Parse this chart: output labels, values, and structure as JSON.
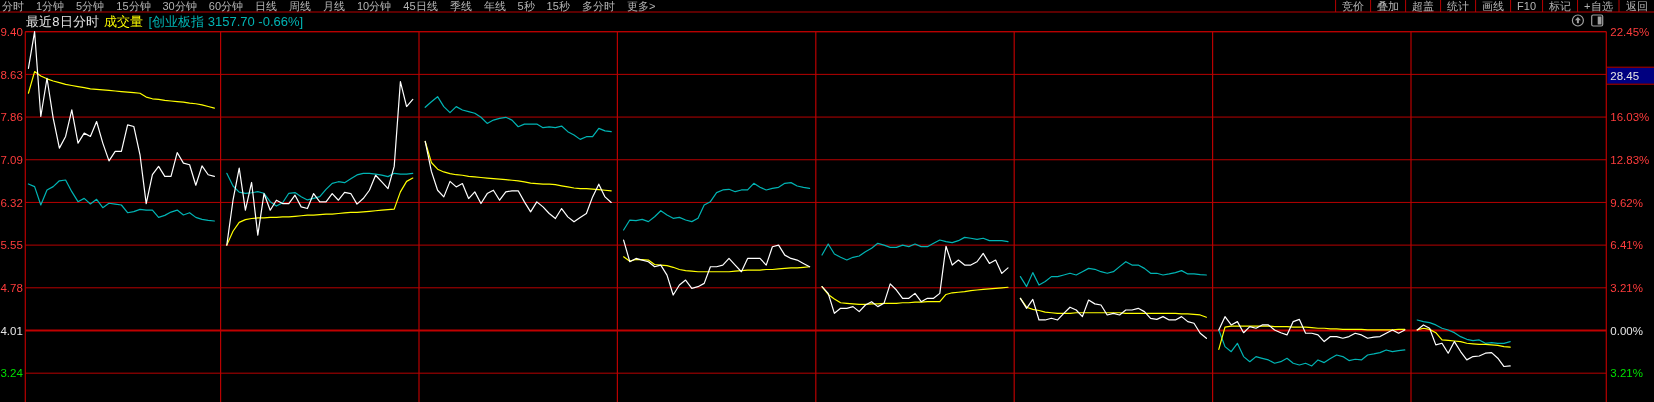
{
  "chart_data": {
    "type": "line",
    "title": "最近8日分时",
    "annotations": [
      "分时 1分钟 5分钟 15分钟 30分钟 60分钟 日线 周线 月线 10分钟 45日线 季线 年线 5秒 15秒 多分时 更多>",
      "竞价 叠加 超盖 统计 画线 F10 标记 +自选 返回",
      "28.45"
    ],
    "categories": [
      null,
      null,
      null,
      null,
      null,
      null,
      null,
      null,
      null,
      null,
      null,
      null,
      null,
      null,
      null,
      null,
      null,
      null,
      null,
      null,
      null,
      null,
      null,
      null,
      null,
      null,
      null,
      null,
      null,
      null,
      null,
      null,
      null,
      null,
      null,
      null,
      null,
      null,
      null,
      null,
      null,
      null,
      null,
      null,
      null,
      null,
      null,
      null,
      null,
      null,
      null,
      null,
      null,
      null,
      null,
      null,
      null,
      null,
      null,
      null,
      null,
      null,
      null,
      null,
      null,
      null,
      null,
      null,
      null,
      null,
      null,
      null,
      null,
      null,
      null,
      null,
      null,
      null,
      null,
      null,
      null,
      null,
      null,
      null,
      null,
      null,
      null,
      null,
      null,
      null,
      null,
      null,
      null,
      null,
      null,
      null,
      null,
      null,
      null,
      null,
      null,
      null,
      null,
      null,
      null,
      null,
      null,
      null,
      null,
      null,
      null,
      null,
      null,
      null,
      null,
      null,
      null,
      null,
      null,
      null,
      null,
      null,
      null,
      null,
      null,
      null,
      null,
      null,
      null,
      null,
      null,
      null,
      null,
      null,
      null,
      null,
      null,
      null,
      null,
      null,
      null,
      null,
      null,
      null,
      null,
      null,
      null,
      null,
      null,
      null,
      null,
      null,
      null,
      null,
      null,
      null,
      null,
      null,
      null,
      null,
      null,
      null,
      null,
      null,
      null,
      null,
      null,
      null,
      null,
      null,
      null,
      null,
      null,
      null,
      null,
      null,
      null,
      null,
      null,
      null,
      null,
      null,
      null,
      null,
      null,
      null,
      null,
      null,
      null,
      null,
      null,
      null,
      null,
      null,
      null,
      null,
      null,
      null,
      null,
      null,
      null,
      null,
      null,
      null,
      null,
      null,
      null,
      null,
      null,
      null,
      null,
      null,
      null,
      null,
      null,
      null,
      null,
      null,
      null,
      null,
      null,
      null,
      null,
      null,
      null,
      null,
      null,
      null,
      null,
      null,
      null,
      null,
      null,
      null,
      null,
      null,
      null,
      null,
      null,
      null,
      null,
      null,
      null,
      null,
      null,
      null,
      null,
      null,
      null,
      null,
      null,
      null,
      null,
      null,
      null
    ],
    "ylim": [
      2.72,
      9.4
    ],
    "yticks": [
      {
        "value": 9.4,
        "label": "9.40"
      },
      8.63,
      7.86,
      7.09,
      6.32,
      5.55,
      4.78,
      4.01,
      3.24
    ],
    "y2lim": [
      -5.37,
      22.45
    ],
    "y2ticks": [
      {
        "value": 22.45,
        "label": "22.45%"
      },
      {
        "value": 16.03,
        "label": "16.03%"
      },
      {
        "value": 12.83,
        "label": "12.83%"
      },
      {
        "value": 9.62,
        "label": "9.62%"
      },
      {
        "value": 6.41,
        "label": "6.41%"
      },
      {
        "value": 3.21,
        "label": "3.21%"
      },
      {
        "value": 0,
        "label": "0.00%"
      },
      {
        "value": -3.21,
        "label": "3.21%"
      }
    ],
    "grid": true,
    "ref_lines": [
      {
        "axis": "y",
        "value": 4.01,
        "color": "#c00000"
      }
    ],
    "series": [
      {
        "color": "#ffffff",
        "values": [
          8.74,
          9.4,
          7.87,
          8.56,
          7.84,
          7.3,
          7.51,
          7.99,
          7.39,
          7.57,
          7.51,
          7.78,
          7.39,
          7.07,
          7.24,
          7.24,
          7.72,
          7.69,
          7.18,
          6.3,
          6.82,
          6.97,
          6.79,
          6.79,
          7.22,
          7.03,
          7.0,
          6.63,
          6.98,
          6.82,
          6.79,
          null,
          5.55,
          6.36,
          6.94,
          6.18,
          6.68,
          5.73,
          6.48,
          6.18,
          6.36,
          6.3,
          6.3,
          6.45,
          6.24,
          6.21,
          6.48,
          6.33,
          6.33,
          6.48,
          6.36,
          6.5,
          6.48,
          6.29,
          6.39,
          6.54,
          6.81,
          6.69,
          6.57,
          6.97,
          8.5,
          8.05,
          8.18,
          null,
          7.42,
          6.88,
          6.54,
          6.42,
          6.7,
          6.6,
          6.66,
          6.39,
          6.51,
          6.3,
          6.48,
          6.54,
          6.36,
          6.51,
          6.53,
          6.53,
          6.33,
          6.15,
          6.33,
          6.24,
          6.12,
          6.03,
          6.21,
          6.06,
          5.97,
          6.05,
          6.12,
          6.42,
          6.65,
          6.42,
          6.32,
          null,
          5.64,
          5.25,
          5.31,
          5.28,
          5.25,
          5.16,
          5.19,
          5.01,
          4.65,
          4.83,
          4.92,
          4.77,
          4.8,
          4.86,
          5.16,
          5.16,
          5.19,
          5.31,
          5.19,
          5.07,
          5.31,
          5.31,
          5.31,
          5.19,
          5.52,
          5.55,
          5.37,
          5.31,
          5.28,
          5.22,
          5.16,
          null,
          4.8,
          4.68,
          4.32,
          4.41,
          4.41,
          4.44,
          4.35,
          4.47,
          4.53,
          4.44,
          4.5,
          4.85,
          4.74,
          4.59,
          4.59,
          4.68,
          4.53,
          4.59,
          4.59,
          4.68,
          5.53,
          5.19,
          5.28,
          5.19,
          5.19,
          5.25,
          5.4,
          5.22,
          5.28,
          5.04,
          5.14,
          null,
          4.59,
          4.41,
          4.57,
          4.2,
          4.2,
          4.23,
          4.2,
          4.32,
          4.43,
          4.38,
          4.26,
          4.56,
          4.49,
          4.47,
          4.29,
          4.32,
          4.29,
          4.38,
          4.38,
          4.41,
          4.35,
          4.23,
          4.21,
          4.26,
          4.2,
          4.2,
          4.26,
          4.17,
          4.14,
          3.96,
          3.87,
          null,
          4.02,
          4.26,
          4.11,
          4.17,
          3.97,
          4.08,
          4.05,
          4.11,
          4.11,
          4.02,
          3.97,
          3.93,
          4.17,
          4.21,
          3.96,
          3.96,
          3.93,
          3.81,
          3.9,
          3.9,
          3.87,
          3.9,
          3.96,
          3.93,
          3.87,
          3.89,
          3.9,
          3.96,
          4.02,
          3.96,
          4.02,
          null,
          4.02,
          4.11,
          4.05,
          3.75,
          3.78,
          3.6,
          3.81,
          3.63,
          3.48,
          3.54,
          3.55,
          3.6,
          3.61,
          3.51,
          3.36,
          3.37,
          null,
          null,
          null,
          null,
          null,
          null,
          null,
          null,
          null,
          null,
          null,
          null,
          null,
          null,
          null
        ]
      },
      {
        "name": "成交量",
        "color": "#ffff00",
        "values": [
          8.29,
          8.68,
          8.6,
          8.55,
          8.51,
          8.48,
          8.45,
          8.43,
          8.41,
          8.39,
          8.37,
          8.36,
          8.35,
          8.34,
          8.33,
          8.32,
          8.31,
          8.3,
          8.29,
          8.22,
          8.19,
          8.18,
          8.16,
          8.15,
          8.14,
          8.13,
          8.11,
          8.1,
          8.08,
          8.05,
          8.02,
          null,
          5.55,
          5.8,
          5.96,
          6.01,
          6.03,
          6.04,
          6.04,
          6.05,
          6.05,
          6.06,
          6.06,
          6.07,
          6.08,
          6.09,
          6.09,
          6.1,
          6.11,
          6.11,
          6.12,
          6.13,
          6.14,
          6.14,
          6.15,
          6.16,
          6.17,
          6.18,
          6.19,
          6.2,
          6.51,
          6.7,
          6.76,
          null,
          7.42,
          7.04,
          6.92,
          6.87,
          6.84,
          6.82,
          6.81,
          6.79,
          6.78,
          6.77,
          6.76,
          6.75,
          6.74,
          6.73,
          6.72,
          6.71,
          6.69,
          6.67,
          6.66,
          6.65,
          6.65,
          6.64,
          6.62,
          6.6,
          6.58,
          6.57,
          6.57,
          6.56,
          6.55,
          6.54,
          6.53,
          null,
          5.34,
          5.26,
          5.29,
          5.29,
          5.28,
          5.2,
          5.19,
          5.18,
          5.15,
          5.11,
          5.09,
          5.08,
          5.07,
          5.07,
          5.07,
          5.07,
          5.07,
          5.07,
          5.08,
          5.09,
          5.1,
          5.1,
          5.1,
          5.11,
          5.11,
          5.12,
          5.13,
          5.14,
          5.14,
          5.15,
          5.16,
          null,
          4.8,
          4.66,
          4.58,
          4.51,
          4.5,
          4.49,
          4.48,
          4.48,
          4.49,
          4.49,
          4.5,
          4.5,
          4.5,
          4.51,
          4.51,
          4.52,
          4.52,
          4.53,
          4.53,
          4.53,
          4.66,
          4.69,
          4.7,
          4.71,
          4.73,
          4.74,
          4.75,
          4.76,
          4.77,
          4.78,
          4.79,
          null,
          4.59,
          4.43,
          4.39,
          4.37,
          4.34,
          4.33,
          4.32,
          4.32,
          4.32,
          4.33,
          4.33,
          4.33,
          4.33,
          4.33,
          4.33,
          4.33,
          4.33,
          4.32,
          4.32,
          4.32,
          4.32,
          4.32,
          4.32,
          4.32,
          4.32,
          4.32,
          4.31,
          4.31,
          4.3,
          4.29,
          4.25,
          null,
          3.67,
          4.07,
          4.09,
          4.09,
          4.09,
          4.09,
          4.09,
          4.09,
          4.09,
          4.08,
          4.08,
          4.08,
          4.07,
          4.07,
          4.07,
          4.06,
          4.05,
          4.05,
          4.04,
          4.04,
          4.03,
          4.03,
          4.03,
          4.03,
          4.02,
          4.02,
          4.02,
          4.02,
          4.02,
          4.03,
          4.03,
          null,
          4.02,
          4.05,
          4.03,
          3.97,
          3.84,
          3.83,
          3.82,
          3.81,
          3.78,
          3.77,
          3.76,
          3.76,
          3.75,
          3.74,
          3.72,
          3.71,
          null,
          null,
          null,
          null,
          null,
          null,
          null,
          null,
          null,
          null,
          null,
          null,
          null,
          null,
          null
        ]
      },
      {
        "name": "[创业板指 3157.70 -0.66%]",
        "color": "#00b4b4",
        "axis": "y2",
        "values": [
          11.01,
          10.81,
          9.43,
          10.56,
          10.81,
          11.25,
          11.31,
          10.43,
          9.68,
          9.93,
          9.51,
          9.86,
          9.23,
          9.56,
          9.5,
          9.43,
          8.85,
          8.93,
          9.1,
          9.05,
          9.05,
          8.5,
          8.65,
          8.9,
          9.05,
          8.68,
          8.85,
          8.5,
          8.35,
          8.28,
          8.23,
          null,
          11.81,
          10.86,
          10.4,
          10.31,
          10.35,
          10.43,
          10.31,
          9.68,
          9.35,
          9.6,
          10.31,
          10.36,
          10.05,
          9.81,
          9.93,
          10.06,
          10.6,
          11.06,
          11.18,
          11.11,
          11.4,
          11.69,
          11.81,
          11.81,
          11.75,
          11.68,
          11.56,
          11.81,
          11.75,
          11.75,
          11.81,
          null,
          16.77,
          17.19,
          17.57,
          16.82,
          16.37,
          16.82,
          16.57,
          16.45,
          16.32,
          16.02,
          15.56,
          15.81,
          15.94,
          16.02,
          15.81,
          15.31,
          15.51,
          15.5,
          15.51,
          15.24,
          15.3,
          15.24,
          15.36,
          14.94,
          14.69,
          14.36,
          14.56,
          14.56,
          15.19,
          15.0,
          14.94,
          null,
          7.55,
          8.3,
          8.25,
          8.35,
          8.18,
          8.55,
          9.0,
          8.68,
          8.43,
          8.5,
          8.3,
          8.18,
          8.43,
          9.43,
          9.68,
          10.36,
          10.56,
          10.61,
          10.43,
          10.56,
          10.56,
          11.06,
          10.76,
          10.56,
          10.68,
          10.76,
          11.06,
          11.11,
          10.86,
          10.75,
          10.68,
          null,
          5.67,
          6.5,
          5.75,
          5.5,
          5.3,
          5.5,
          5.6,
          5.92,
          6.18,
          6.55,
          6.42,
          6.25,
          6.25,
          6.42,
          6.3,
          6.5,
          6.3,
          6.3,
          6.55,
          6.8,
          6.68,
          6.6,
          6.75,
          7.0,
          6.93,
          6.85,
          6.93,
          6.75,
          6.75,
          6.75,
          6.68,
          null,
          4.05,
          3.3,
          4.35,
          3.42,
          3.68,
          4.05,
          4.05,
          4.17,
          4.3,
          4.17,
          4.42,
          4.67,
          4.6,
          4.42,
          4.3,
          4.42,
          4.8,
          5.17,
          4.92,
          4.92,
          4.67,
          4.3,
          4.3,
          4.17,
          4.25,
          4.35,
          4.5,
          4.25,
          4.25,
          4.2,
          4.17,
          null,
          0.04,
          -1.21,
          -1.59,
          -0.96,
          -1.96,
          -2.34,
          -1.96,
          -2.09,
          -2.21,
          -2.46,
          -2.34,
          -2.09,
          -2.46,
          -2.59,
          -2.46,
          -2.66,
          -2.21,
          -2.41,
          -2.1,
          -1.84,
          -1.96,
          -2.26,
          -2.16,
          -2.21,
          -1.84,
          -1.76,
          -1.66,
          -1.46,
          -1.59,
          -1.51,
          -1.46,
          null,
          0.79,
          0.67,
          0.59,
          0.42,
          0.17,
          0.04,
          -0.16,
          -0.46,
          -0.66,
          -0.76,
          -0.71,
          -0.96,
          -0.91,
          -0.96,
          -0.96,
          -0.84,
          null,
          null,
          null,
          null,
          null,
          null,
          null,
          null,
          null,
          null,
          null,
          null,
          null,
          null,
          null
        ]
      }
    ]
  }
}
